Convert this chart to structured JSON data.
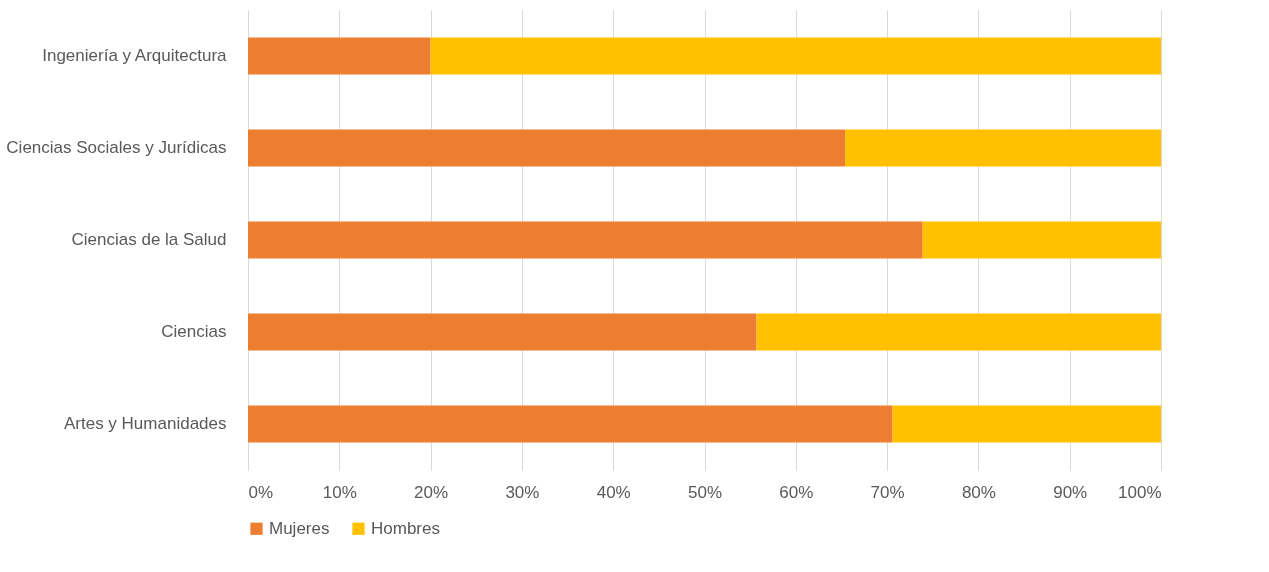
{
  "chart_data": {
    "type": "bar",
    "orientation": "horizontal",
    "stacked": true,
    "categories": [
      "Ingeniería y Arquitectura",
      "Ciencias Sociales y Jurídicas",
      "Ciencias de la Salud",
      "Ciencias",
      "Artes y Humanidades"
    ],
    "series": [
      {
        "name": "Mujeres",
        "color": "#ed7d31",
        "values": [
          20,
          65.4,
          73.9,
          55.7,
          70.6
        ]
      },
      {
        "name": "Hombres",
        "color": "#ffc000",
        "values": [
          80,
          34.6,
          26.1,
          44.3,
          29.4
        ]
      }
    ],
    "xlim": [
      0,
      100
    ],
    "xticks": [
      {
        "value": 0,
        "label": "0%"
      },
      {
        "value": 10,
        "label": "10%"
      },
      {
        "value": 20,
        "label": "20%"
      },
      {
        "value": 30,
        "label": "30%"
      },
      {
        "value": 40,
        "label": "40%"
      },
      {
        "value": 50,
        "label": "50%"
      },
      {
        "value": 60,
        "label": "60%"
      },
      {
        "value": 70,
        "label": "70%"
      },
      {
        "value": 80,
        "label": "80%"
      },
      {
        "value": 90,
        "label": "90%"
      },
      {
        "value": 100,
        "label": "100%"
      }
    ],
    "grid": "x",
    "legend": "bottom"
  }
}
